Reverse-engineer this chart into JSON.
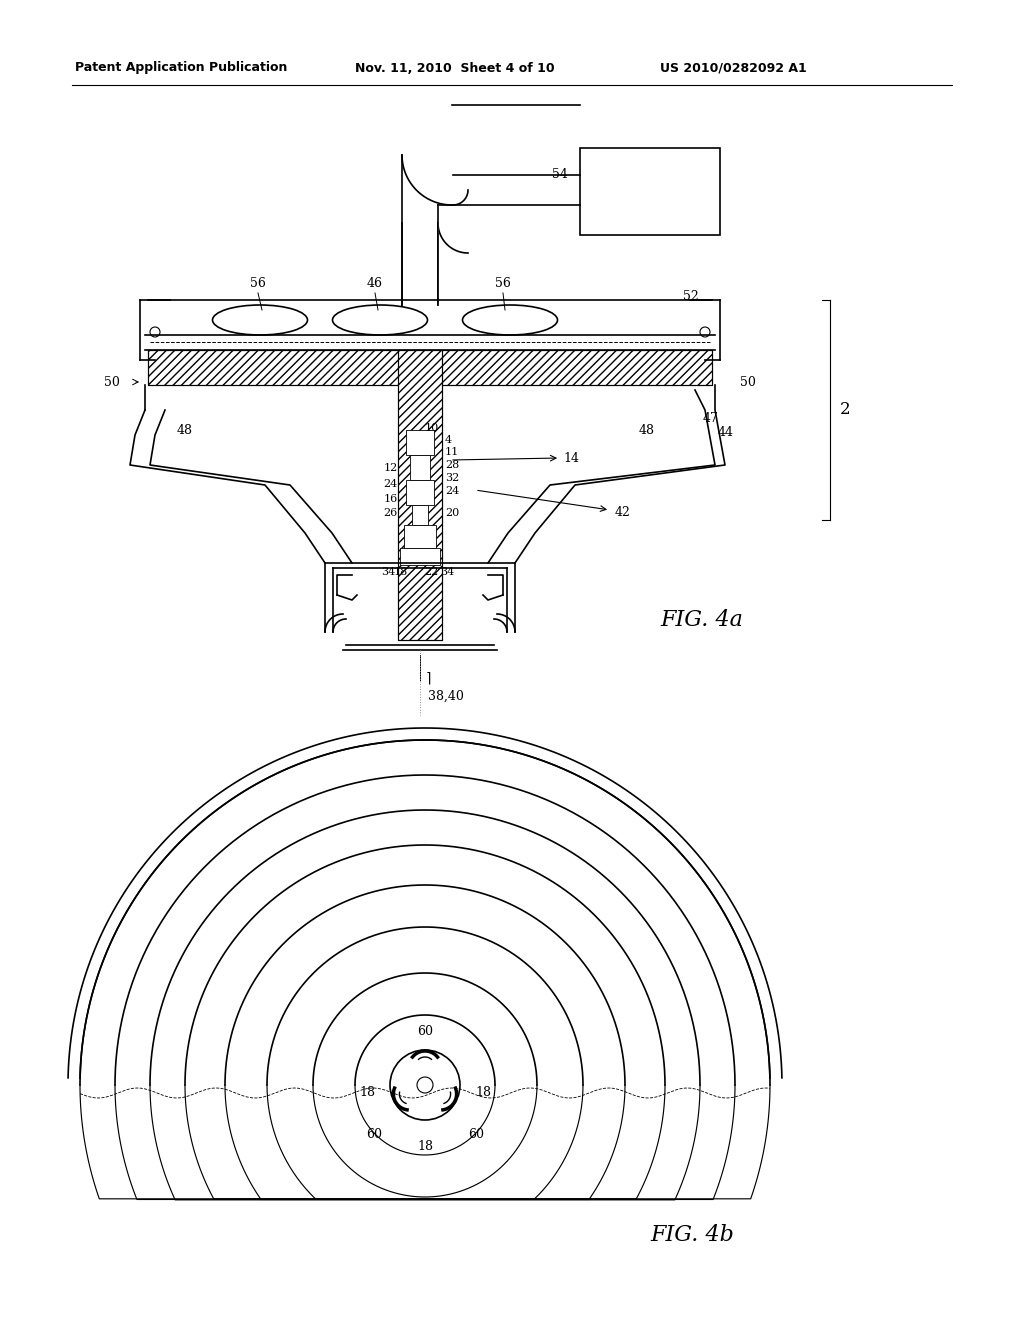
{
  "header_left": "Patent Application Publication",
  "header_mid": "Nov. 11, 2010  Sheet 4 of 10",
  "header_right": "US 2010/0282092 A1",
  "fig4a_label": "FIG. 4a",
  "fig4b_label": "FIG. 4b",
  "background_color": "#ffffff",
  "line_color": "#000000"
}
